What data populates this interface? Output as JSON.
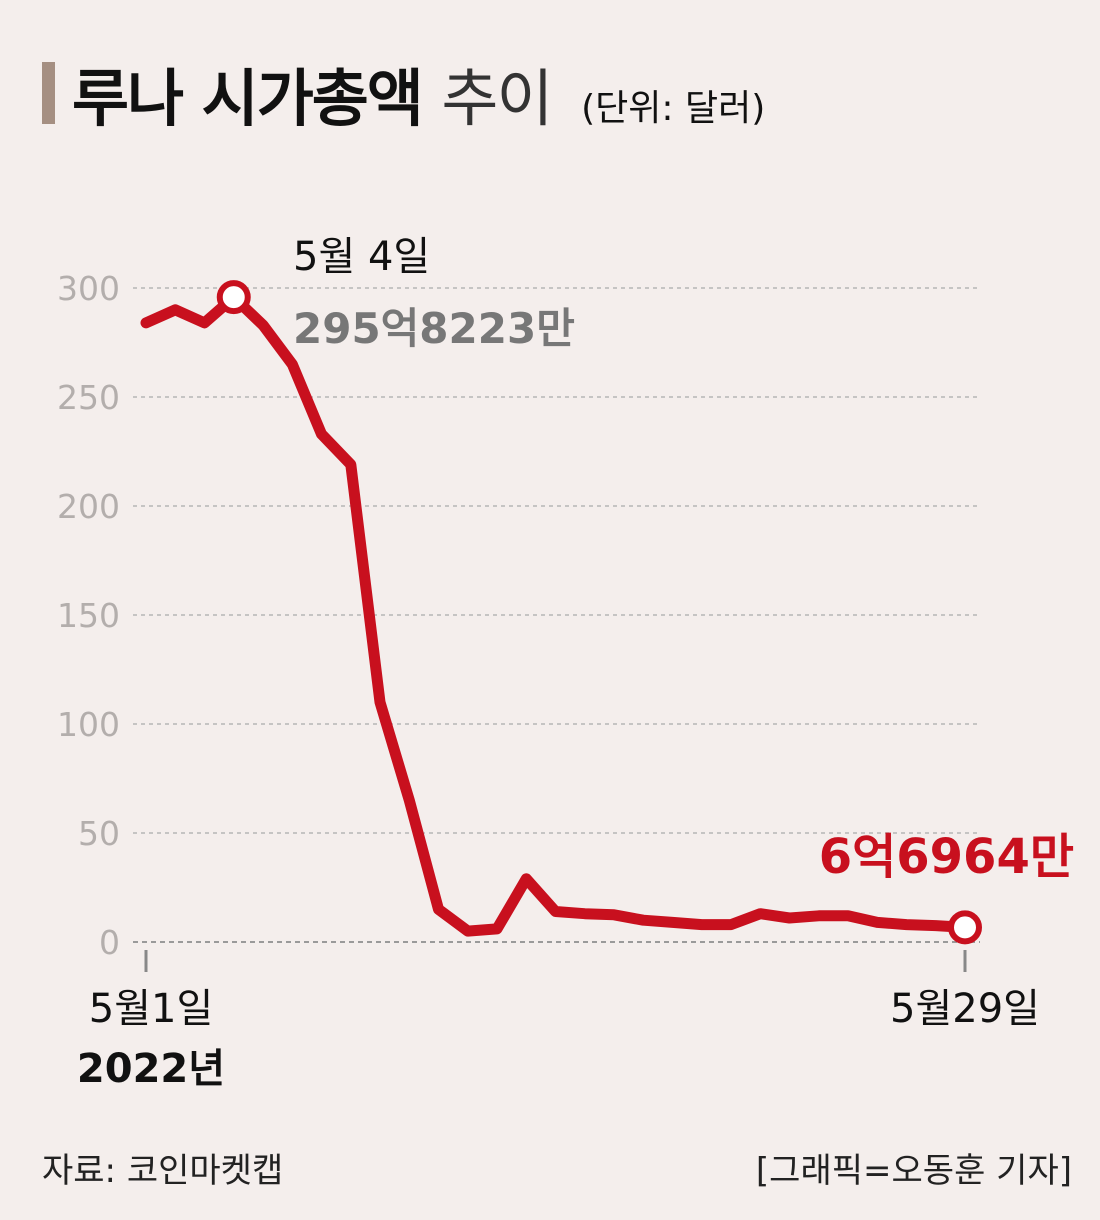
{
  "title": {
    "main": "루나 시가총액",
    "light": "추이",
    "unit": "(단위: 달러)"
  },
  "chart_data": {
    "type": "line",
    "title": "루나 시가총액 추이",
    "unit": "(단위: 달러)",
    "ylim": [
      0,
      300
    ],
    "yticks": [
      "300",
      "250",
      "200",
      "150",
      "100",
      "50",
      "0"
    ],
    "ytick_values": [
      300,
      250,
      200,
      150,
      100,
      50,
      0
    ],
    "grid": true,
    "x_start_label": "5월1일",
    "x_start_year": "2022년",
    "x_end_label": "5월29일",
    "series": [
      {
        "x": [
          1,
          2,
          3,
          4,
          5,
          6,
          7,
          8,
          9,
          10,
          11,
          12,
          13,
          14,
          15,
          16,
          17,
          18,
          19,
          20,
          21,
          22,
          23,
          24,
          25,
          26,
          27,
          28,
          29
        ],
        "values": [
          284,
          290,
          284,
          295.8,
          283,
          265,
          233,
          219,
          110,
          65,
          15,
          5,
          6,
          29,
          14,
          13,
          12.5,
          10,
          9,
          8,
          8,
          13,
          11,
          12,
          12,
          9,
          8,
          7.5,
          6.7
        ]
      }
    ],
    "annotations": [
      {
        "day": 4,
        "value": 295.8,
        "date_label": "5월 4일",
        "value_label": "295억8223만",
        "color": "#777777"
      },
      {
        "day": 29,
        "value": 6.7,
        "value_label": "6억6964만",
        "color": "#c8101e"
      }
    ],
    "line_color": "#c8101e"
  },
  "footer": {
    "source": "자료: 코인마켓캡",
    "credit": "[그래픽=오동훈 기자]"
  }
}
